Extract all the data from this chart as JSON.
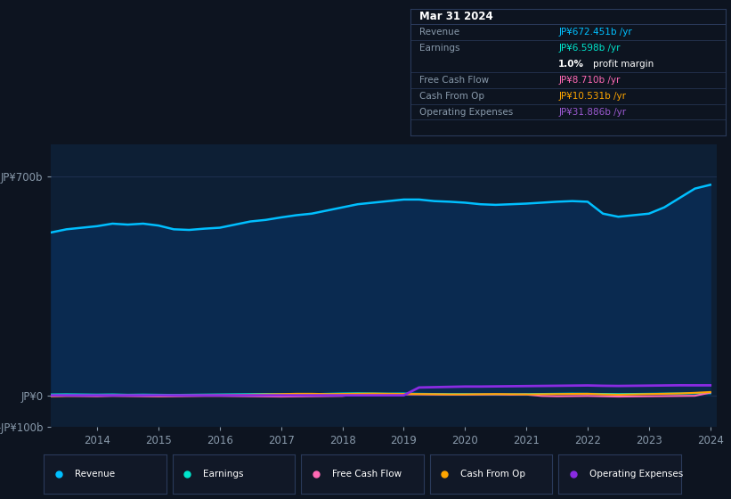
{
  "background_color": "#0d1420",
  "plot_bg_color": "#0d1f35",
  "grid_color": "#1e3050",
  "text_color": "#8899aa",
  "years": [
    2013.25,
    2013.5,
    2013.75,
    2014.0,
    2014.25,
    2014.5,
    2014.75,
    2015.0,
    2015.25,
    2015.5,
    2015.75,
    2016.0,
    2016.25,
    2016.5,
    2016.75,
    2017.0,
    2017.25,
    2017.5,
    2017.75,
    2018.0,
    2018.25,
    2018.5,
    2018.75,
    2019.0,
    2019.25,
    2019.5,
    2019.75,
    2020.0,
    2020.25,
    2020.5,
    2020.75,
    2021.0,
    2021.25,
    2021.5,
    2021.75,
    2022.0,
    2022.25,
    2022.5,
    2022.75,
    2023.0,
    2023.25,
    2023.5,
    2023.75,
    2024.0
  ],
  "revenue": [
    520,
    530,
    535,
    540,
    548,
    545,
    548,
    542,
    530,
    528,
    532,
    535,
    545,
    555,
    560,
    568,
    575,
    580,
    590,
    600,
    610,
    615,
    620,
    625,
    625,
    620,
    618,
    615,
    610,
    608,
    610,
    612,
    615,
    618,
    620,
    618,
    580,
    570,
    575,
    580,
    600,
    630,
    660,
    672
  ],
  "earnings": [
    3,
    3.5,
    3,
    2.5,
    3,
    2,
    2.5,
    2,
    1.5,
    2,
    2.5,
    3,
    3.5,
    4,
    4.5,
    4,
    3.5,
    4,
    5,
    6,
    6.5,
    6,
    5.5,
    6,
    5,
    4.5,
    4,
    4,
    3.5,
    3,
    3.5,
    4,
    4.5,
    5,
    5.5,
    5,
    4.5,
    4,
    4.5,
    5,
    5.5,
    6,
    6.5,
    6.598
  ],
  "free_cash_flow": [
    -3,
    -2,
    -2.5,
    -3,
    -2,
    -2.5,
    -3,
    -3.5,
    -3,
    -2.5,
    -2,
    -2,
    -2.5,
    -3,
    -3.5,
    -4,
    -3.5,
    -3,
    -2.5,
    -2,
    3,
    4,
    3.5,
    3,
    3,
    2.5,
    2,
    2,
    2.5,
    3,
    2,
    2.5,
    -2,
    -3,
    -2.5,
    -2,
    -3,
    -4,
    -3.5,
    -3,
    -2.5,
    -2,
    -1.5,
    8.71
  ],
  "cash_from_op": [
    -2,
    -1.5,
    -1,
    -1,
    -0.5,
    -0.5,
    -1,
    -1.5,
    -1,
    -0.5,
    0,
    0.5,
    1,
    2,
    3,
    4,
    5,
    5,
    4,
    4.5,
    5,
    5.5,
    5,
    4.5,
    4,
    3.5,
    3,
    3,
    3.5,
    4,
    3.5,
    3,
    3.5,
    4,
    4.5,
    5,
    3,
    2,
    3,
    4,
    5,
    6,
    8,
    10.531
  ],
  "operating_expenses": [
    0,
    0,
    0,
    0,
    0,
    0,
    0,
    0,
    0,
    0,
    0,
    0,
    0,
    0,
    0,
    0,
    0,
    0,
    0,
    0,
    0,
    0,
    0,
    0,
    25,
    26,
    27,
    28,
    28,
    28.5,
    29,
    29.5,
    30,
    30.5,
    31,
    31.5,
    30.5,
    30,
    30.5,
    31,
    31.5,
    32,
    31.9,
    31.886
  ],
  "ylim": [
    -100,
    800
  ],
  "yticks": [
    -100,
    0,
    700
  ],
  "ytick_labels": [
    "-JP¥100b",
    "JP¥0",
    "JP¥700b"
  ],
  "xticks": [
    2014,
    2015,
    2016,
    2017,
    2018,
    2019,
    2020,
    2021,
    2022,
    2023,
    2024
  ],
  "revenue_color": "#00bfff",
  "revenue_fill_color": "#0a2a50",
  "earnings_color": "#00e5cc",
  "free_cash_flow_color": "#ff69b4",
  "cash_from_op_color": "#ffa500",
  "operating_expenses_color": "#8a2be2",
  "legend_items": [
    "Revenue",
    "Earnings",
    "Free Cash Flow",
    "Cash From Op",
    "Operating Expenses"
  ],
  "legend_colors": [
    "#00bfff",
    "#00e5cc",
    "#ff69b4",
    "#ffa500",
    "#8a2be2"
  ],
  "tooltip_bg": "#0d1420",
  "tooltip_border": "#2a3a5a",
  "tooltip_title": "Mar 31 2024",
  "tooltip_items": [
    {
      "label": "Revenue",
      "value": "JP¥672.451b /yr",
      "color": "#00bfff"
    },
    {
      "label": "Earnings",
      "value": "JP¥6.598b /yr",
      "color": "#00e5cc"
    },
    {
      "label": "",
      "value": "1.0% profit margin",
      "color": "#ffffff",
      "bold_part": "1.0%"
    },
    {
      "label": "Free Cash Flow",
      "value": "JP¥8.710b /yr",
      "color": "#ff69b4"
    },
    {
      "label": "Cash From Op",
      "value": "JP¥10.531b /yr",
      "color": "#ffa500"
    },
    {
      "label": "Operating Expenses",
      "value": "JP¥31.886b /yr",
      "color": "#9b59d0"
    }
  ]
}
